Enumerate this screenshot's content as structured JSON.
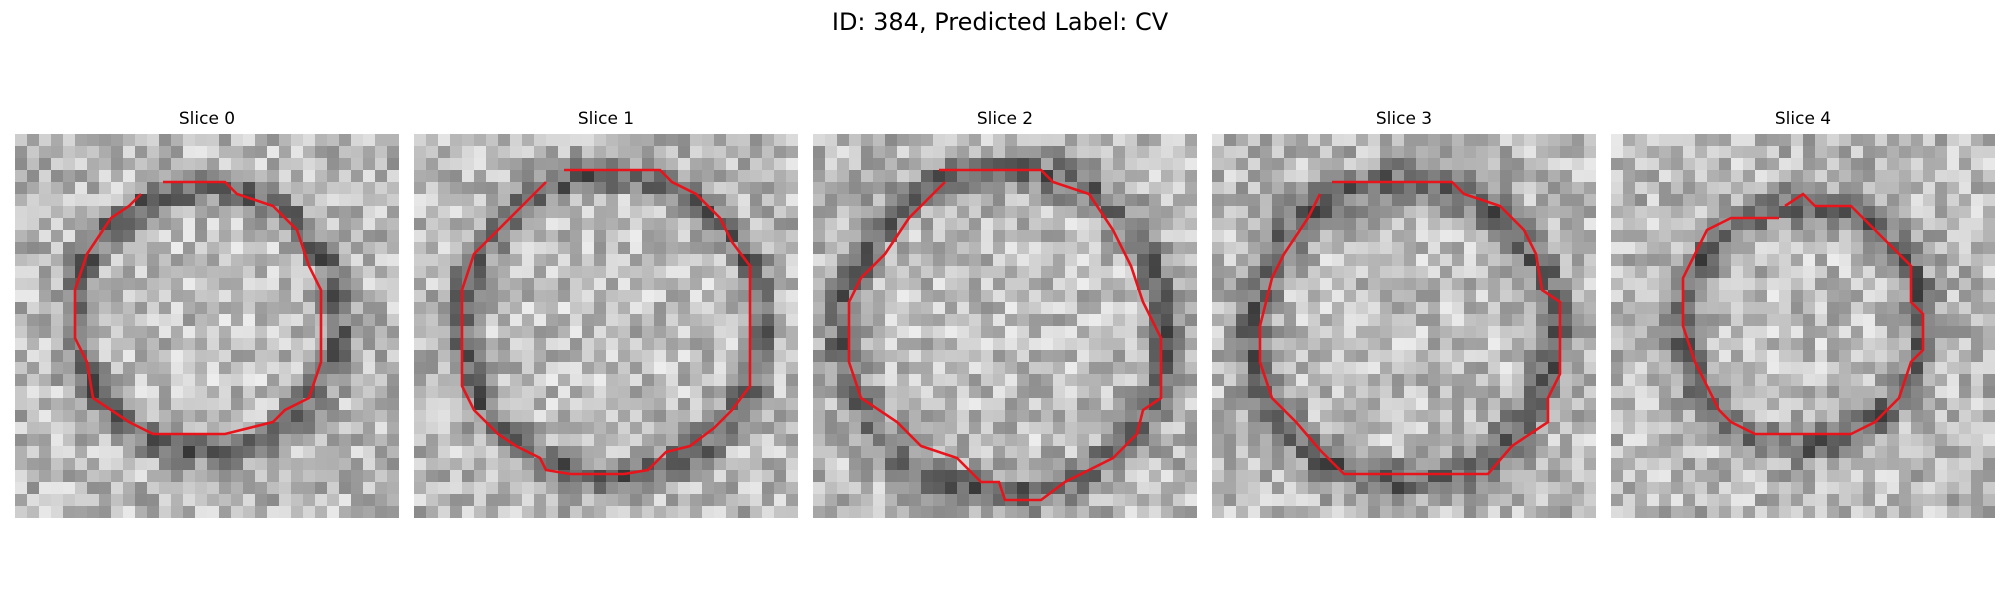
{
  "figure": {
    "title": "ID: 384, Predicted Label: CV"
  },
  "panels": [
    {
      "title": "Slice 0",
      "outline_color": "#e8141b"
    },
    {
      "title": "Slice 1",
      "outline_color": "#e8141b"
    },
    {
      "title": "Slice 2",
      "outline_color": "#e8141b"
    },
    {
      "title": "Slice 3",
      "outline_color": "#e8141b"
    },
    {
      "title": "Slice 4",
      "outline_color": "#e8141b"
    }
  ]
}
